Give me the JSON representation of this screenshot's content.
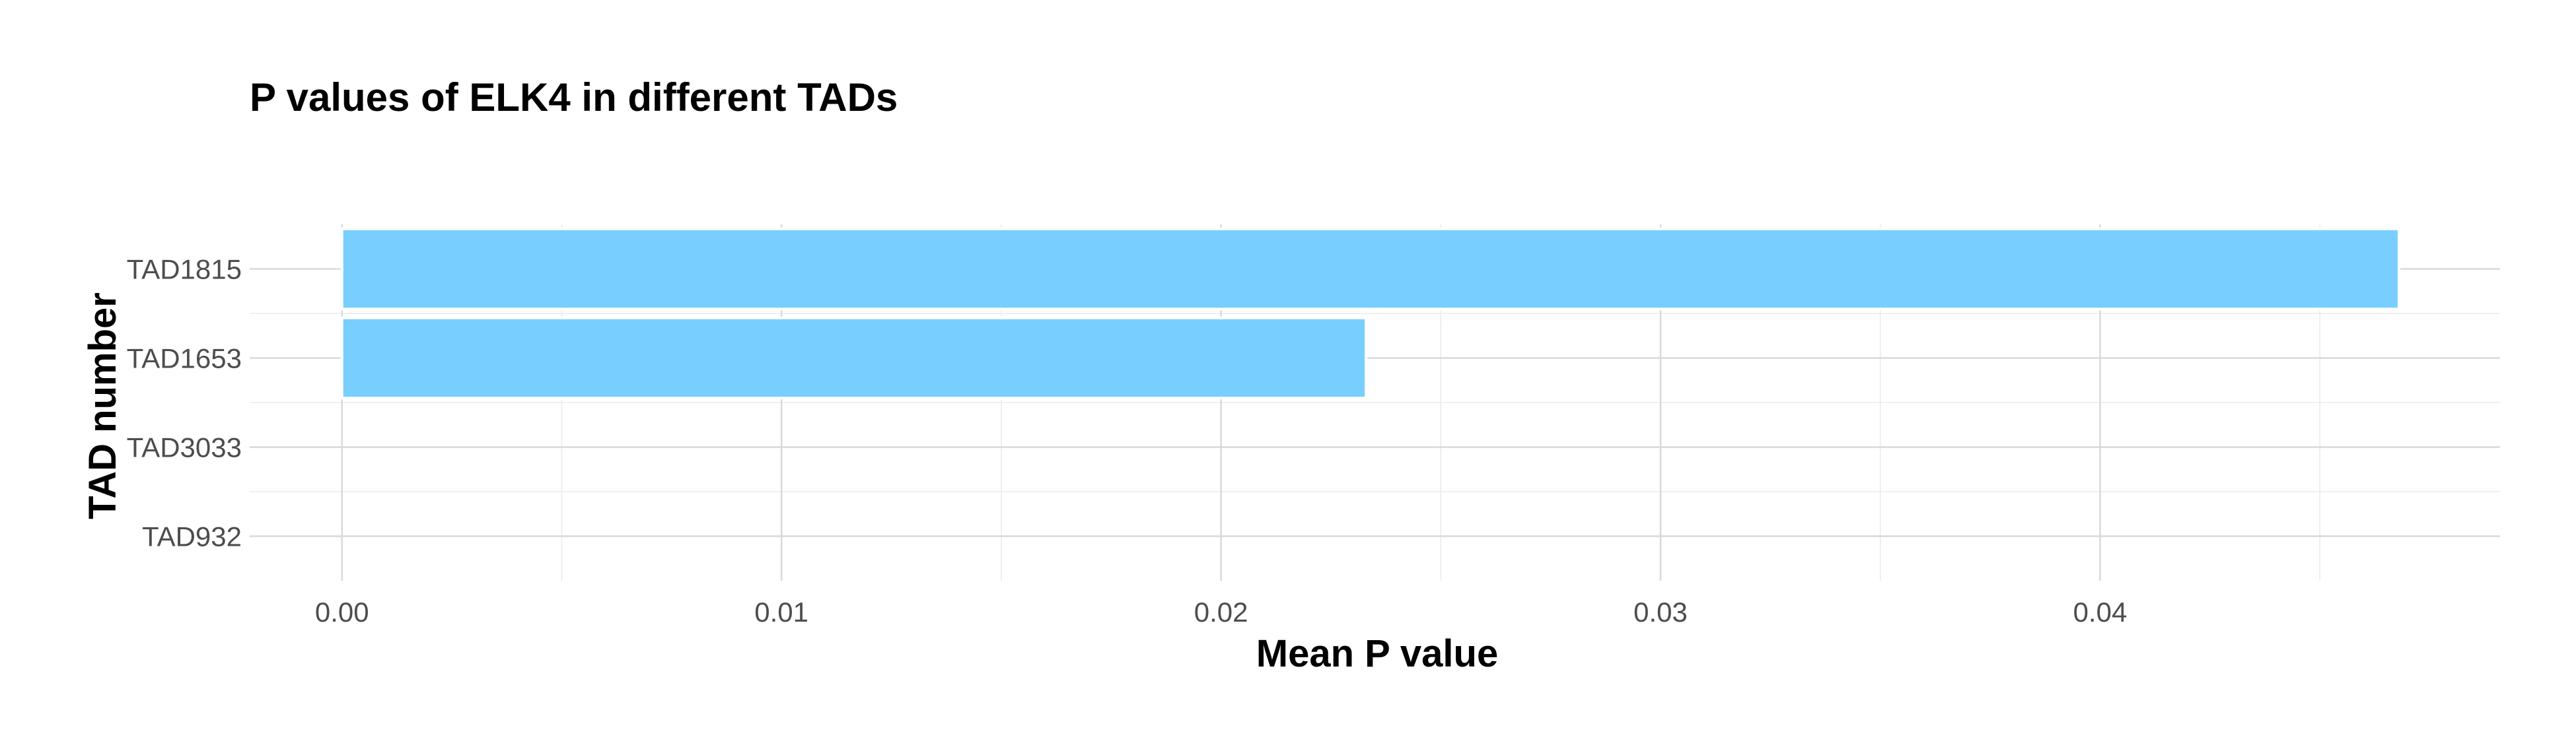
{
  "chart_data": {
    "type": "bar",
    "orientation": "horizontal",
    "title": "P values of ELK4 in different TADs",
    "xlabel": "Mean P value",
    "ylabel": "TAD number",
    "categories": [
      "TAD1815",
      "TAD1653",
      "TAD3033",
      "TAD932"
    ],
    "values": [
      0.0468,
      0.0233,
      0.0,
      0.0
    ],
    "xlim": [
      -0.0021,
      0.0491
    ],
    "x_ticks": [
      0.0,
      0.01,
      0.02,
      0.03,
      0.04
    ],
    "x_tick_labels": [
      "0.00",
      "0.01",
      "0.02",
      "0.03",
      "0.04"
    ],
    "bar_color": "#78CFFF",
    "grid": true,
    "legend": "none"
  }
}
